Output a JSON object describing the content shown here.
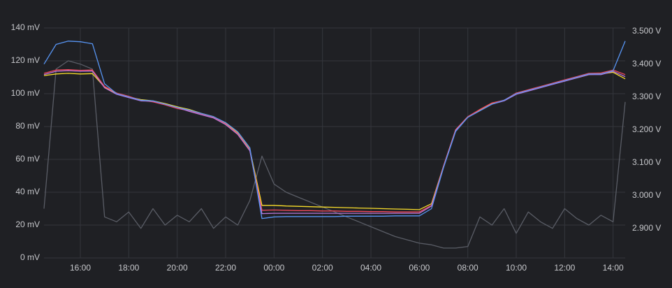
{
  "chart_data": {
    "type": "line",
    "categories": [
      null,
      null,
      null,
      "16:00",
      null,
      null,
      null,
      "18:00",
      null,
      null,
      null,
      "20:00",
      null,
      null,
      null,
      "22:00",
      null,
      null,
      null,
      "00:00",
      null,
      null,
      null,
      "02:00",
      null,
      null,
      null,
      "04:00",
      null,
      null,
      null,
      "06:00",
      null,
      null,
      null,
      "08:00",
      null,
      null,
      null,
      "10:00",
      null,
      null,
      null,
      "12:00",
      null,
      null,
      null,
      "14:00",
      null
    ],
    "ylim": [
      0,
      140
    ],
    "yticks": [
      {
        "value": 0,
        "label": "0 mV"
      },
      {
        "value": 20,
        "label": "20 mV"
      },
      {
        "value": 40,
        "label": "40 mV"
      },
      {
        "value": 60,
        "label": "60 mV"
      },
      {
        "value": 80,
        "label": "80 mV"
      },
      {
        "value": 100,
        "label": "100 mV"
      },
      {
        "value": 120,
        "label": "120 mV"
      },
      {
        "value": 140,
        "label": "140 mV"
      }
    ],
    "y2lim": [
      2.81,
      3.51
    ],
    "y2ticks": [
      {
        "value": 2.9,
        "label": "2.900 V"
      },
      {
        "value": 3.0,
        "label": "3.000 V"
      },
      {
        "value": 3.1,
        "label": "3.100 V"
      },
      {
        "value": 3.2,
        "label": "3.200 V"
      },
      {
        "value": 3.3,
        "label": "3.300 V"
      },
      {
        "value": 3.4,
        "label": "3.400 V"
      },
      {
        "value": 3.5,
        "label": "3.500 V"
      }
    ],
    "grid": true,
    "series": [
      {
        "color": "#5a5d66",
        "values": [
          30,
          115,
          120,
          118,
          115,
          25,
          22,
          28,
          18,
          30,
          20,
          26,
          22,
          30,
          18,
          25,
          20,
          35,
          62,
          45,
          40,
          37,
          34,
          31,
          28,
          25,
          22,
          19,
          16,
          13,
          11,
          9,
          8,
          6,
          6,
          7,
          25,
          20,
          30,
          15,
          28,
          22,
          18,
          30,
          24,
          20,
          26,
          22,
          95
        ]
      },
      {
        "color": "#fade2a",
        "axis": "y2",
        "values": [
          3.365,
          3.37,
          3.372,
          3.37,
          3.371,
          3.33,
          3.31,
          3.3,
          3.292,
          3.288,
          3.28,
          3.27,
          3.262,
          3.25,
          3.24,
          3.22,
          3.19,
          3.14,
          2.97,
          2.97,
          2.968,
          2.967,
          2.966,
          2.965,
          2.964,
          2.963,
          2.962,
          2.961,
          2.96,
          2.959,
          2.958,
          2.957,
          2.975,
          3.09,
          3.2,
          3.24,
          3.26,
          3.28,
          3.29,
          3.31,
          3.32,
          3.33,
          3.34,
          3.35,
          3.358,
          3.368,
          3.37,
          3.375,
          3.355
        ]
      },
      {
        "color": "#f2495c",
        "axis": "y2",
        "values": [
          3.372,
          3.382,
          3.383,
          3.381,
          3.382,
          3.332,
          3.312,
          3.302,
          3.29,
          3.285,
          3.276,
          3.265,
          3.258,
          3.248,
          3.238,
          3.218,
          3.188,
          3.138,
          2.955,
          2.956,
          2.955,
          2.954,
          2.954,
          2.953,
          2.953,
          2.952,
          2.952,
          2.951,
          2.951,
          2.95,
          2.95,
          2.95,
          2.97,
          3.09,
          3.2,
          3.24,
          3.262,
          3.282,
          3.29,
          3.312,
          3.322,
          3.332,
          3.342,
          3.352,
          3.362,
          3.372,
          3.373,
          3.382,
          3.368
        ]
      },
      {
        "color": "#b877d9",
        "axis": "y2",
        "values": [
          3.368,
          3.378,
          3.38,
          3.378,
          3.379,
          3.328,
          3.308,
          3.298,
          3.288,
          3.287,
          3.278,
          3.268,
          3.256,
          3.246,
          3.236,
          3.216,
          3.186,
          3.136,
          2.945,
          2.946,
          2.946,
          2.946,
          2.946,
          2.946,
          2.946,
          2.946,
          2.946,
          2.946,
          2.946,
          2.946,
          2.946,
          2.946,
          2.968,
          3.088,
          3.198,
          3.238,
          3.258,
          3.278,
          3.288,
          3.308,
          3.318,
          3.328,
          3.338,
          3.348,
          3.358,
          3.368,
          3.368,
          3.378,
          3.362
        ]
      },
      {
        "color": "#5794f2",
        "axis": "y2",
        "values": [
          3.4,
          3.46,
          3.47,
          3.468,
          3.462,
          3.34,
          3.31,
          3.3,
          3.29,
          3.288,
          3.278,
          3.268,
          3.26,
          3.25,
          3.24,
          3.222,
          3.194,
          3.145,
          2.93,
          2.935,
          2.936,
          2.936,
          2.936,
          2.936,
          2.936,
          2.937,
          2.937,
          2.937,
          2.937,
          2.938,
          2.938,
          2.938,
          2.96,
          3.085,
          3.195,
          3.238,
          3.258,
          3.278,
          3.29,
          3.31,
          3.32,
          3.33,
          3.34,
          3.35,
          3.36,
          3.37,
          3.37,
          3.38,
          3.47
        ]
      }
    ]
  }
}
